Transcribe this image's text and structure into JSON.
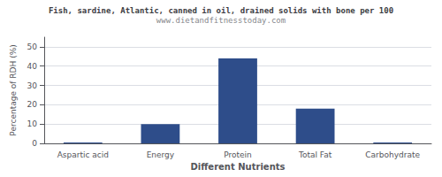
{
  "chart_data": {
    "type": "bar",
    "title": "Fish, sardine, Atlantic, canned in oil, drained solids with bone per 100",
    "subtitle": "www.dietandfitnesstoday.com",
    "categories": [
      "Aspartic acid",
      "Energy",
      "Protein",
      "Total Fat",
      "Carbohydrate"
    ],
    "values": [
      0.5,
      10.0,
      44.0,
      18.0,
      0.5
    ],
    "color": "#2e4d8a",
    "xlabel": "Different Nutrients",
    "ylabel": "Percentage of RDH (%)",
    "ylim": [
      0,
      55
    ],
    "yticks": [
      0,
      10,
      20,
      30,
      40,
      50
    ],
    "grid": true
  }
}
